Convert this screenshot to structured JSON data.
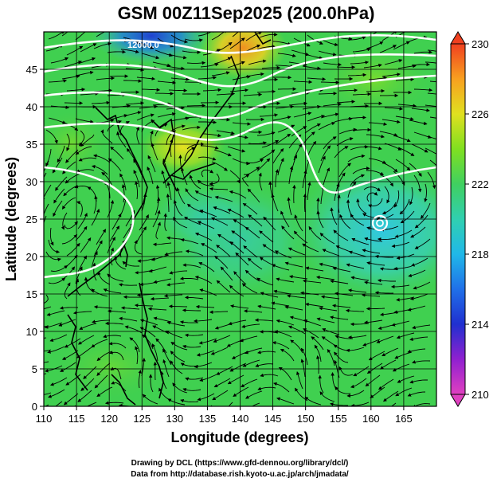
{
  "chart_data": {
    "type": "heatmap",
    "title": "GSM 00Z11Sep2025 (200.0hPa)",
    "xlabel": "Longitude (degrees)",
    "ylabel": "Latitude  (degrees)",
    "xlim": [
      110,
      170
    ],
    "ylim": [
      0,
      50
    ],
    "x_ticks": [
      110,
      115,
      120,
      125,
      130,
      135,
      140,
      145,
      150,
      155,
      160,
      165
    ],
    "y_ticks": [
      0,
      5,
      10,
      15,
      20,
      25,
      30,
      35,
      40,
      45
    ],
    "colorbar": {
      "min": 210,
      "max": 230,
      "ticks": [
        210,
        214,
        218,
        222,
        226,
        230
      ],
      "colors": [
        "#e040c0",
        "#5020d0",
        "#2060e0",
        "#20c0e0",
        "#30d0a0",
        "#40d040",
        "#a0e020",
        "#f0e020",
        "#f8a020",
        "#f04020"
      ]
    },
    "contour_label": "12000.0",
    "grid": true
  },
  "credits": {
    "line1": "Drawing by DCL (https://www.gfd-dennou.org/library/dcl/)",
    "line2": "Data from http://database.rish.kyoto-u.ac.jp/arch/jmadata/"
  }
}
